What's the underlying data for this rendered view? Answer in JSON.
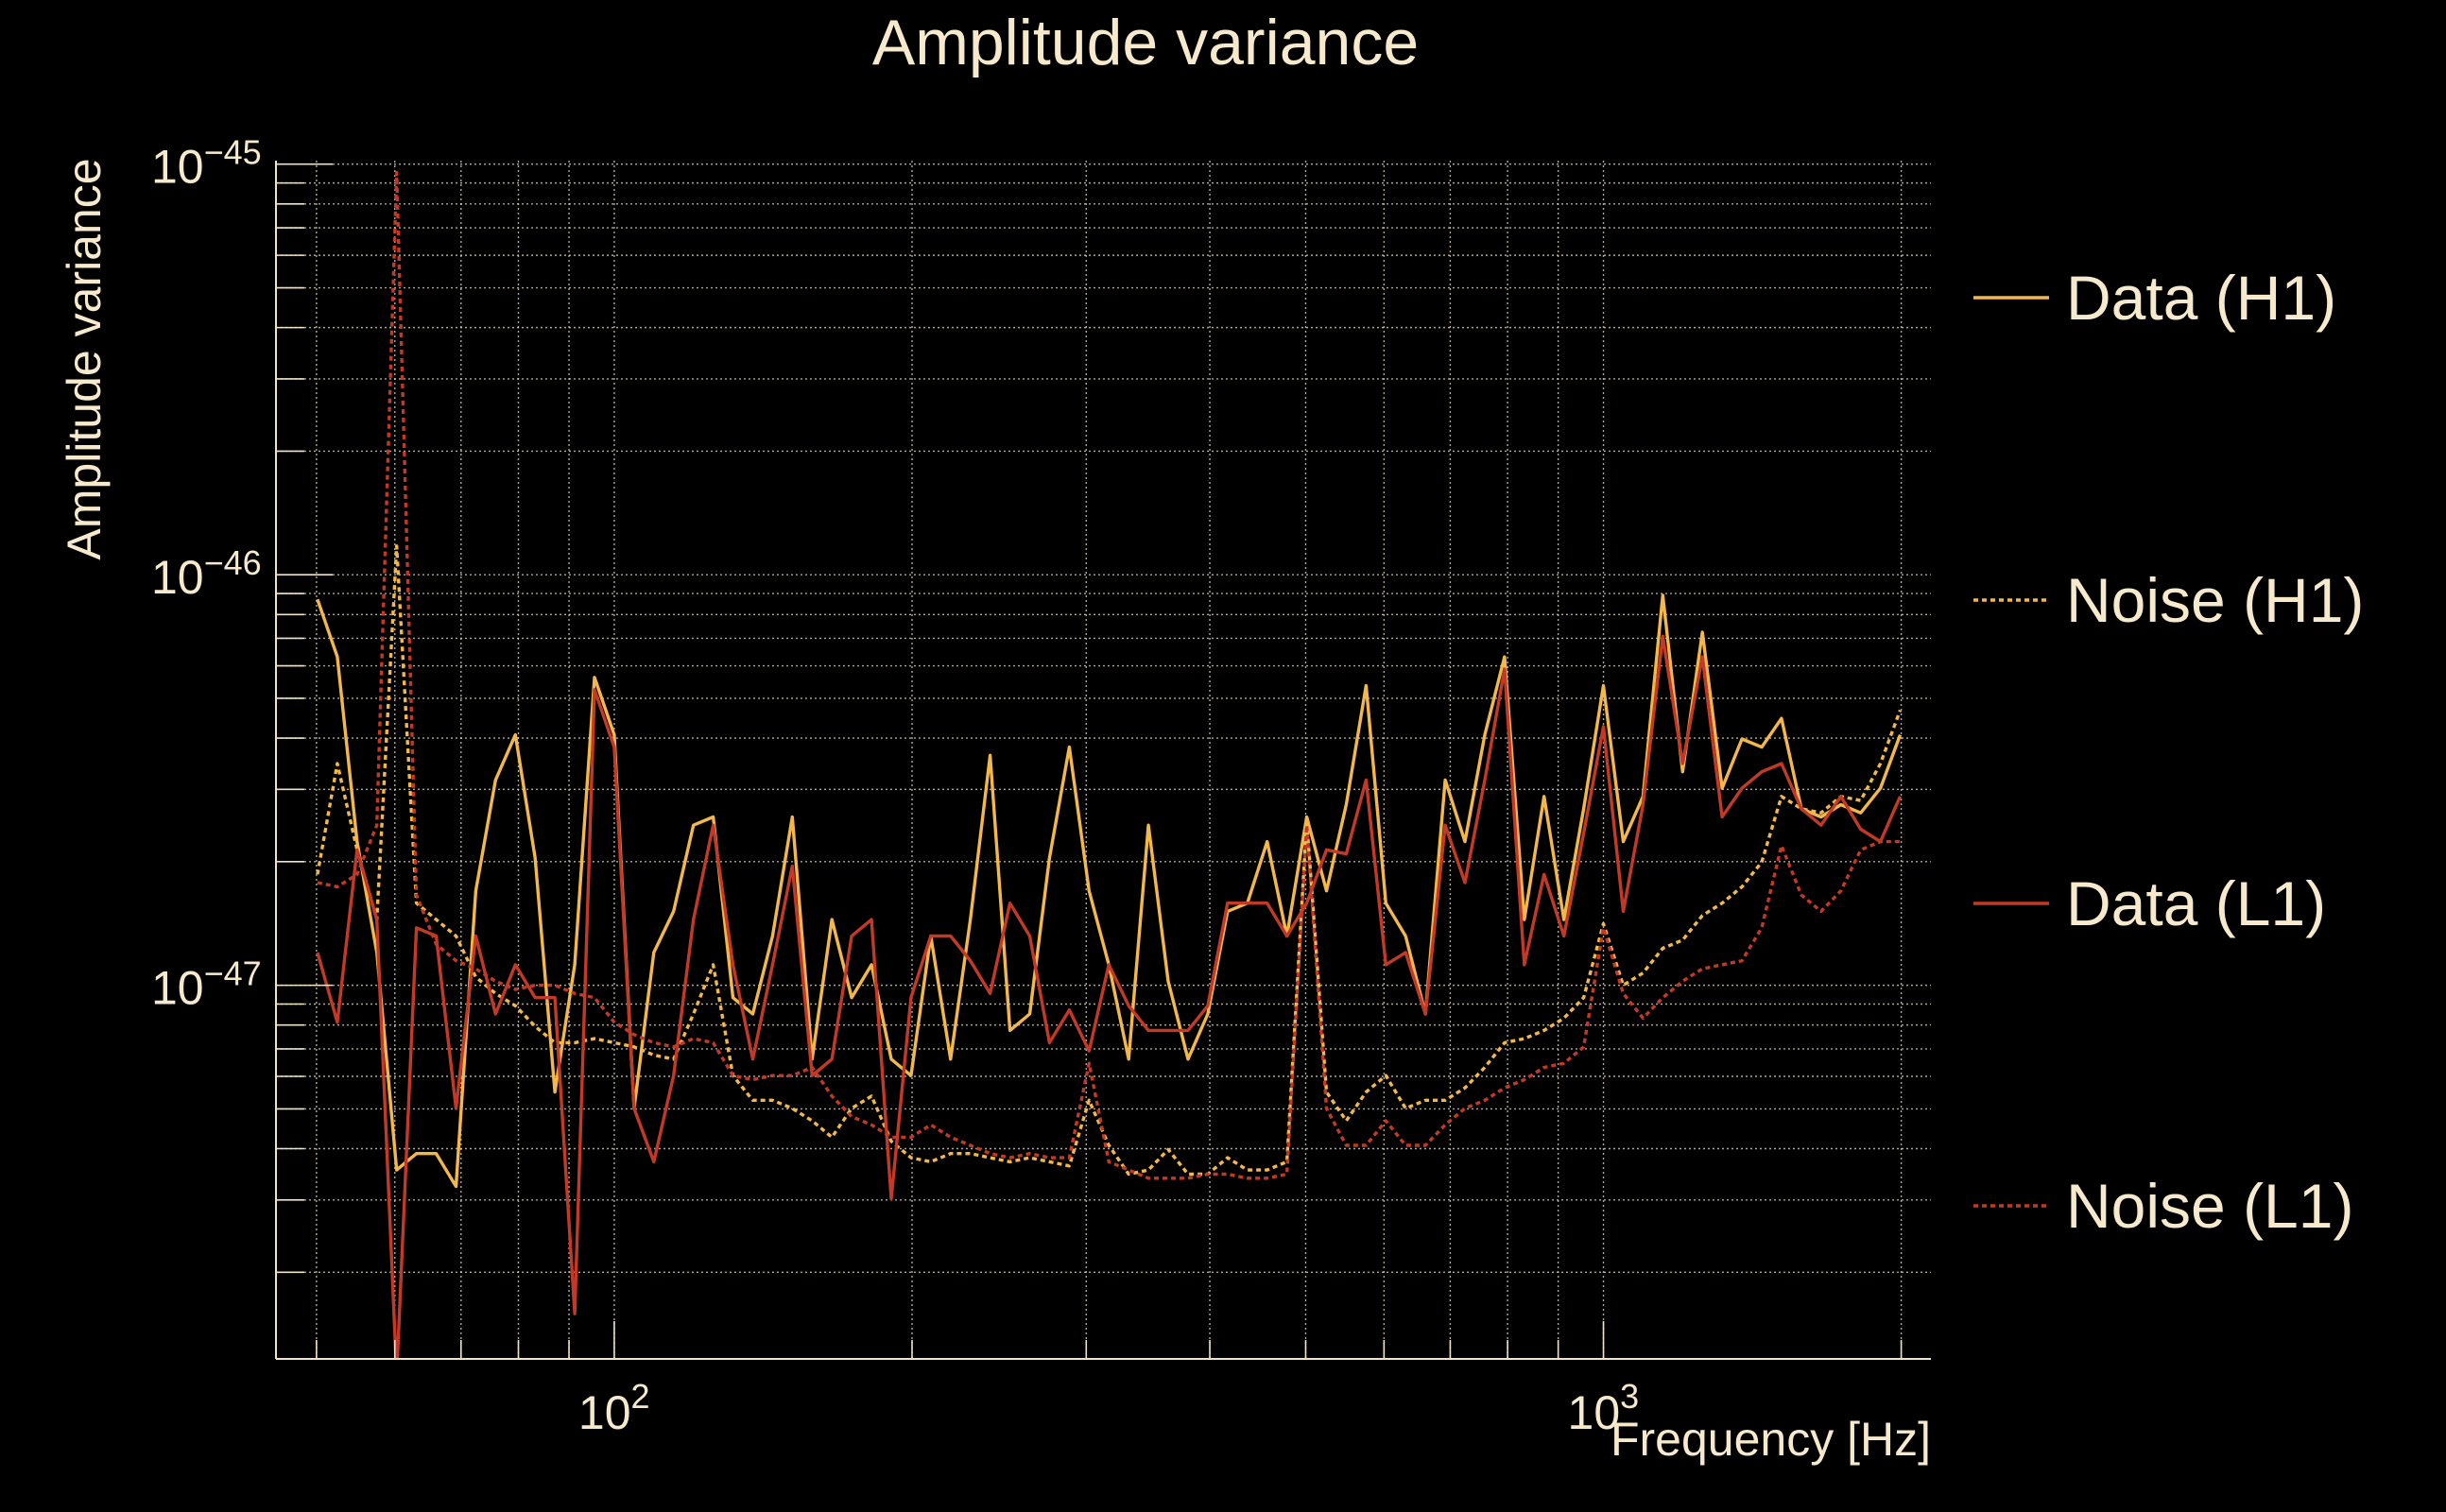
{
  "chart_data": {
    "type": "line",
    "title": "Amplitude variance",
    "xlabel": "Frequency [Hz]",
    "ylabel": "Amplitude variance",
    "xscale": "log",
    "yscale": "log",
    "xlim": [
      45.5,
      2143
    ],
    "ylim": [
      1.23e-48,
      1.02e-45
    ],
    "grid": true,
    "legend_placement": "right-outside",
    "x_ticks": [
      {
        "value": 100,
        "base": "10",
        "exp": "2"
      },
      {
        "value": 1000,
        "base": "10",
        "exp": "3"
      }
    ],
    "y_ticks": [
      {
        "value": 1e-45,
        "base": "10",
        "exp": "−45"
      },
      {
        "value": 1e-46,
        "base": "10",
        "exp": "−46"
      },
      {
        "value": 1e-47,
        "base": "10",
        "exp": "−47"
      }
    ],
    "x_log10_hz": {
      "start": 1.7,
      "step": 0.02,
      "count": 81
    },
    "series": [
      {
        "name": "Data (H1)",
        "color": "#f2b84b",
        "style": "solid",
        "log10_values": [
          -46.06,
          -46.2,
          -46.65,
          -46.92,
          -47.45,
          -47.41,
          -47.41,
          -47.49,
          -46.77,
          -46.5,
          -46.39,
          -46.69,
          -47.26,
          -46.95,
          -46.25,
          -46.39,
          -47.3,
          -46.92,
          -46.82,
          -46.61,
          -46.59,
          -47.03,
          -47.07,
          -46.88,
          -46.59,
          -47.18,
          -46.84,
          -47.03,
          -46.95,
          -47.18,
          -47.22,
          -46.88,
          -47.18,
          -46.84,
          -46.44,
          -47.11,
          -47.07,
          -46.69,
          -46.42,
          -46.77,
          -46.95,
          -47.18,
          -46.61,
          -46.99,
          -47.18,
          -47.07,
          -46.82,
          -46.8,
          -46.65,
          -46.88,
          -46.59,
          -46.77,
          -46.56,
          -46.27,
          -46.8,
          -46.88,
          -47.07,
          -46.5,
          -46.65,
          -46.39,
          -46.2,
          -46.84,
          -46.54,
          -46.84,
          -46.57,
          -46.27,
          -46.65,
          -46.54,
          -46.05,
          -46.48,
          -46.14,
          -46.52,
          -46.4,
          -46.42,
          -46.35,
          -46.57,
          -46.59,
          -46.56,
          -46.58,
          -46.52,
          -46.39
        ]
      },
      {
        "name": "Noise (H1)",
        "color": "#f2b84b",
        "style": "dotted",
        "log10_values": [
          -46.73,
          -46.46,
          -46.67,
          -46.84,
          -45.93,
          -46.8,
          -46.84,
          -46.88,
          -46.98,
          -47.02,
          -47.05,
          -47.1,
          -47.14,
          -47.14,
          -47.13,
          -47.14,
          -47.15,
          -47.17,
          -47.18,
          -47.07,
          -46.95,
          -47.22,
          -47.28,
          -47.28,
          -47.3,
          -47.33,
          -47.37,
          -47.3,
          -47.27,
          -47.38,
          -47.42,
          -47.43,
          -47.41,
          -47.41,
          -47.42,
          -47.43,
          -47.42,
          -47.43,
          -47.44,
          -47.28,
          -47.39,
          -47.46,
          -47.45,
          -47.4,
          -47.46,
          -47.46,
          -47.42,
          -47.45,
          -47.45,
          -47.43,
          -46.6,
          -47.26,
          -47.33,
          -47.26,
          -47.22,
          -47.3,
          -47.28,
          -47.28,
          -47.25,
          -47.2,
          -47.14,
          -47.13,
          -47.11,
          -47.08,
          -47.03,
          -46.85,
          -47.0,
          -46.97,
          -46.91,
          -46.89,
          -46.83,
          -46.8,
          -46.76,
          -46.7,
          -46.54,
          -46.57,
          -46.58,
          -46.54,
          -46.55,
          -46.46,
          -46.33
        ]
      },
      {
        "name": "Data (L1)",
        "color": "#c23a27",
        "style": "solid",
        "log10_values": [
          -46.92,
          -47.09,
          -46.67,
          -46.84,
          -47.95,
          -46.86,
          -46.88,
          -47.3,
          -46.88,
          -47.07,
          -46.95,
          -47.03,
          -47.03,
          -47.8,
          -46.28,
          -46.42,
          -47.3,
          -47.43,
          -47.22,
          -46.84,
          -46.61,
          -46.95,
          -47.18,
          -46.95,
          -46.71,
          -47.22,
          -47.18,
          -46.88,
          -46.84,
          -47.52,
          -47.03,
          -46.88,
          -46.88,
          -46.94,
          -47.02,
          -46.8,
          -46.88,
          -47.14,
          -47.06,
          -47.16,
          -46.95,
          -47.05,
          -47.11,
          -47.11,
          -47.11,
          -47.05,
          -46.8,
          -46.8,
          -46.8,
          -46.88,
          -46.8,
          -46.67,
          -46.68,
          -46.5,
          -46.95,
          -46.92,
          -47.07,
          -46.61,
          -46.75,
          -46.5,
          -46.23,
          -46.95,
          -46.73,
          -46.88,
          -46.63,
          -46.37,
          -46.82,
          -46.56,
          -46.15,
          -46.46,
          -46.2,
          -46.59,
          -46.52,
          -46.48,
          -46.46,
          -46.57,
          -46.61,
          -46.54,
          -46.62,
          -46.65,
          -46.54
        ]
      },
      {
        "name": "Noise (L1)",
        "color": "#c23a27",
        "style": "dotted",
        "log10_values": [
          -46.75,
          -46.76,
          -46.73,
          -46.61,
          -45.02,
          -46.78,
          -46.9,
          -46.94,
          -46.96,
          -46.99,
          -47.01,
          -47.0,
          -47.0,
          -47.02,
          -47.03,
          -47.09,
          -47.12,
          -47.14,
          -47.15,
          -47.13,
          -47.14,
          -47.22,
          -47.23,
          -47.22,
          -47.22,
          -47.2,
          -47.27,
          -47.32,
          -47.34,
          -47.37,
          -47.37,
          -47.34,
          -47.37,
          -47.39,
          -47.41,
          -47.42,
          -47.41,
          -47.42,
          -47.42,
          -47.19,
          -47.43,
          -47.45,
          -47.47,
          -47.47,
          -47.47,
          -47.46,
          -47.46,
          -47.47,
          -47.47,
          -47.46,
          -46.61,
          -47.3,
          -47.39,
          -47.39,
          -47.33,
          -47.39,
          -47.39,
          -47.34,
          -47.3,
          -47.28,
          -47.25,
          -47.23,
          -47.2,
          -47.19,
          -47.15,
          -46.86,
          -47.02,
          -47.08,
          -47.03,
          -46.99,
          -46.96,
          -46.95,
          -46.94,
          -46.86,
          -46.66,
          -46.78,
          -46.82,
          -46.77,
          -46.67,
          -46.65,
          -46.65
        ]
      }
    ]
  }
}
